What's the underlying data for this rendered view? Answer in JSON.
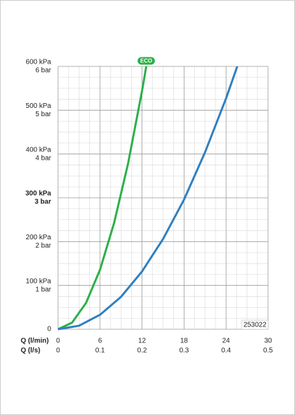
{
  "chart_data": {
    "type": "line",
    "code": "253022",
    "x_label": "Q (l/min)",
    "x2_label": "Q (l/s)",
    "xlim": [
      0,
      30
    ],
    "xticks": [
      0,
      6,
      12,
      18,
      24,
      30
    ],
    "x2lim": [
      0,
      0.5
    ],
    "x2ticks": [
      0,
      0.1,
      0.2,
      0.3,
      0.4,
      0.5
    ],
    "ylim": [
      0,
      600
    ],
    "yticks": [
      {
        "value": 0,
        "label": "0"
      },
      {
        "value": 100,
        "label": "100 kPa",
        "sublabel": "1 bar"
      },
      {
        "value": 200,
        "label": "200 kPa",
        "sublabel": "2 bar"
      },
      {
        "value": 300,
        "label": "300 kPa",
        "sublabel": "3 bar"
      },
      {
        "value": 400,
        "label": "400 kPa",
        "sublabel": "4 bar"
      },
      {
        "value": 500,
        "label": "500 kPa",
        "sublabel": "5 bar"
      },
      {
        "value": 600,
        "label": "600 kPa",
        "sublabel": "6 bar"
      }
    ],
    "emphasized_ytick": 300,
    "grid": true,
    "minor_grid_divisions": 4,
    "series": [
      {
        "name": "ECO",
        "color": "#2bb04a",
        "x": [
          0,
          2,
          4,
          6,
          8,
          10,
          12,
          12.6
        ],
        "values": [
          0,
          15,
          60,
          136,
          242,
          378,
          544,
          600
        ]
      },
      {
        "color": "#2f7fc1",
        "x": [
          0,
          3,
          6,
          9,
          12,
          15,
          18,
          21,
          24,
          25.6
        ],
        "values": [
          0,
          8,
          33,
          74,
          132,
          206,
          296,
          404,
          527,
          600
        ]
      }
    ]
  }
}
